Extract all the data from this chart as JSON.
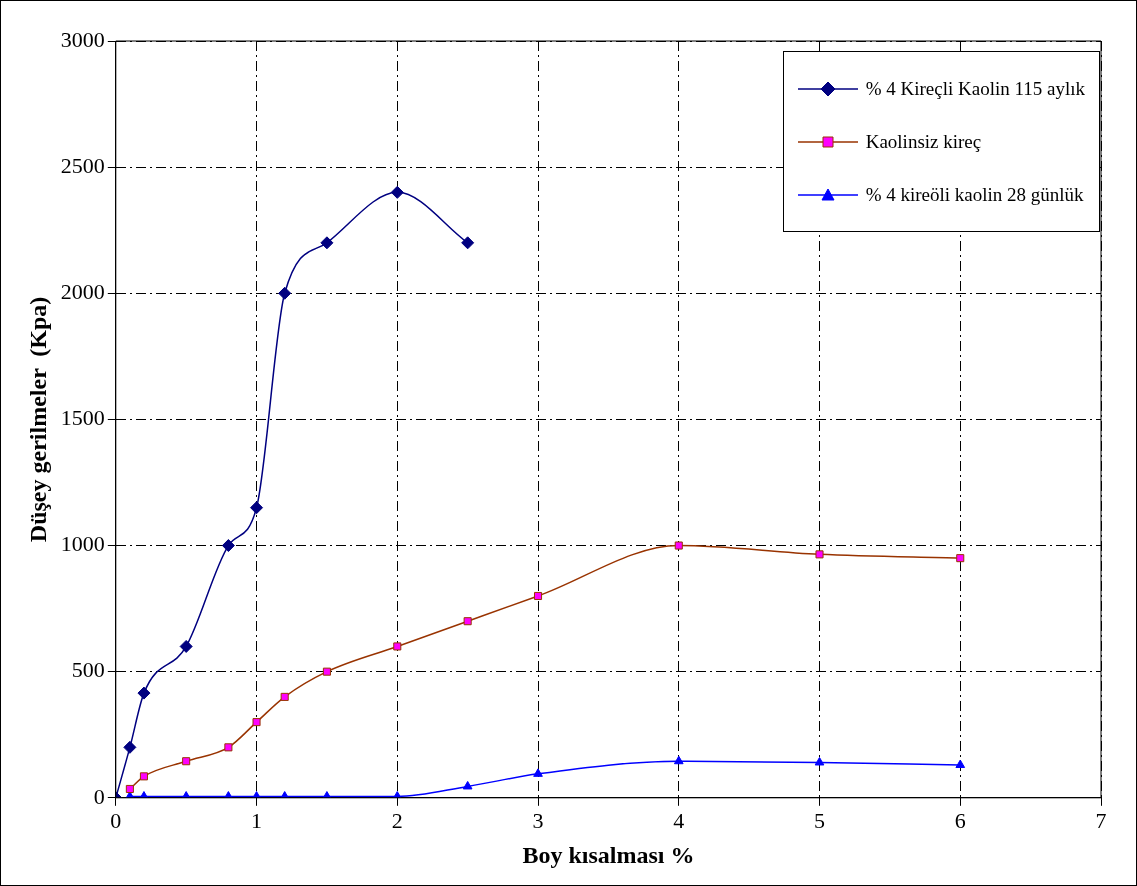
{
  "chart_data": {
    "type": "line",
    "xlabel": "Boy kısalması %",
    "ylabel": "Düşey gerilmeler  (Kpa)",
    "xlim": [
      0,
      7
    ],
    "xticks": [
      0,
      1,
      2,
      3,
      4,
      5,
      6,
      7
    ],
    "ylim": [
      0,
      3000
    ],
    "yticks": [
      0,
      500,
      1000,
      1500,
      2000,
      2500,
      3000
    ],
    "grid": true,
    "legend": "top right",
    "series": [
      {
        "name": "% 4 Kireçli Kaolin 115 aylık",
        "color": "#000080",
        "marker": "diamond",
        "x": [
          0,
          0.1,
          0.2,
          0.5,
          0.8,
          1,
          1.2,
          1.5,
          2,
          2.5
        ],
        "values": [
          0,
          200,
          415,
          600,
          1000,
          1150,
          2000,
          2200,
          2400,
          2200
        ]
      },
      {
        "name": "Kaolinsiz kireç",
        "color": "#993300",
        "marker": "square",
        "colors": [
          "#ff00ff",
          "#ff00ff",
          "#ff00ff",
          "#ff00ff",
          "#ff00ff",
          "#ff00ff",
          "#ff00ff",
          "#ff00ff",
          "#ff00ff",
          "#ff00ff",
          "#ff00ff",
          "#ff00ff",
          "#ff00ff"
        ],
        "x": [
          0.1,
          0.2,
          0.5,
          0.8,
          1,
          1.2,
          1.5,
          2,
          2.5,
          3,
          4,
          5,
          6
        ],
        "values": [
          35,
          85,
          145,
          200,
          300,
          400,
          500,
          600,
          700,
          800,
          1000,
          965,
          950
        ]
      },
      {
        "name": "% 4 kireöli kaolin 28 günlük",
        "color": "#0000ff",
        "marker": "triangle",
        "x": [
          0.1,
          0.2,
          0.5,
          0.8,
          1,
          1.2,
          1.5,
          2,
          2.5,
          3,
          4,
          5,
          6
        ],
        "values": [
          5,
          5,
          5,
          5,
          5,
          5,
          5,
          5,
          45,
          95,
          145,
          140,
          130
        ]
      }
    ]
  }
}
